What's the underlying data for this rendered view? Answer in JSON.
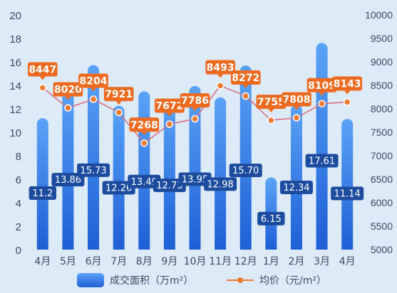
{
  "chart_data": {
    "type": "bar",
    "categories": [
      "4月",
      "5月",
      "6月",
      "7月",
      "8月",
      "9月",
      "10月",
      "11月",
      "12月",
      "1月",
      "2月",
      "3月",
      "4月"
    ],
    "series": [
      {
        "name": "成交面积（万m²）",
        "type": "bar",
        "axis": "left",
        "values": [
          11.2,
          13.86,
          15.73,
          12.26,
          13.49,
          12.73,
          13.95,
          12.98,
          15.7,
          6.15,
          12.34,
          17.61,
          11.14
        ],
        "labels": [
          "11.2",
          "13.86",
          "15.73",
          "12.26",
          "13.49",
          "12.73",
          "13.95",
          "12.98",
          "15.70",
          "6.15",
          "12.34",
          "17.61",
          "11.14"
        ]
      },
      {
        "name": "均价（元/m²）",
        "type": "line",
        "axis": "right",
        "values": [
          8447,
          8020,
          8204,
          7921,
          7268,
          7672,
          7786,
          8493,
          8272,
          7755,
          7808,
          8109,
          8143
        ],
        "labels": [
          "8447",
          "8020",
          "8204",
          "7921",
          "7268",
          "7672",
          "7786",
          "8493",
          "8272",
          "7755",
          "7808",
          "8109",
          "8143"
        ]
      }
    ],
    "y_left": {
      "ylim": [
        0,
        20
      ],
      "ticks": [
        "0",
        "2",
        "4",
        "6",
        "8",
        "10",
        "12",
        "14",
        "16",
        "18",
        "20"
      ]
    },
    "y_right": {
      "ylim": [
        5000,
        10000
      ],
      "ticks": [
        "5000",
        "5500",
        "6000",
        "6500",
        "7000",
        "7500",
        "8000",
        "8500",
        "9000",
        "9500",
        "10000"
      ]
    },
    "legend_position": "bottom",
    "grid": false,
    "colors": {
      "bar_top": "#5aa3f7",
      "bar_bottom": "#1e5fd6",
      "bar_label_bg": "#1d4c9e",
      "line": "#d8707c",
      "marker": "#ee7b2f",
      "price_label_bg": "#ee6a1f",
      "axis_text": "#3b4a5e"
    }
  }
}
